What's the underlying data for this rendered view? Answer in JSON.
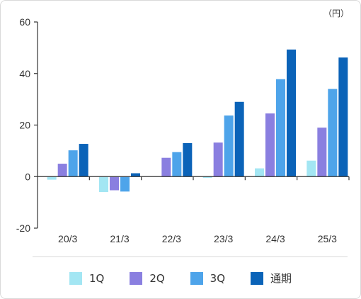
{
  "chart_data": {
    "type": "bar",
    "unit_label": "（円）",
    "categories": [
      "20/3",
      "21/3",
      "22/3",
      "23/3",
      "24/3",
      "25/3"
    ],
    "series": [
      {
        "name": "1Q",
        "color": "#a3e6f3",
        "values": [
          -1.2,
          -6.0,
          0.0,
          -0.5,
          3.2,
          6.2
        ]
      },
      {
        "name": "2Q",
        "color": "#8a7fe0",
        "values": [
          5.0,
          -5.3,
          7.3,
          13.2,
          24.5,
          19.0
        ]
      },
      {
        "name": "3Q",
        "color": "#4ea4ea",
        "values": [
          10.2,
          -5.8,
          9.5,
          23.7,
          37.8,
          34.0
        ]
      },
      {
        "name": "通期",
        "color": "#0b63b8",
        "values": [
          12.7,
          1.3,
          13.0,
          29.0,
          49.3,
          46.2
        ]
      }
    ],
    "ylim": [
      -20,
      60
    ],
    "yticks": [
      "60",
      "40",
      "20",
      "0",
      "-20"
    ],
    "ytick_values": [
      60,
      40,
      20,
      0,
      -20
    ],
    "grid": false,
    "legend_position": "bottom"
  }
}
